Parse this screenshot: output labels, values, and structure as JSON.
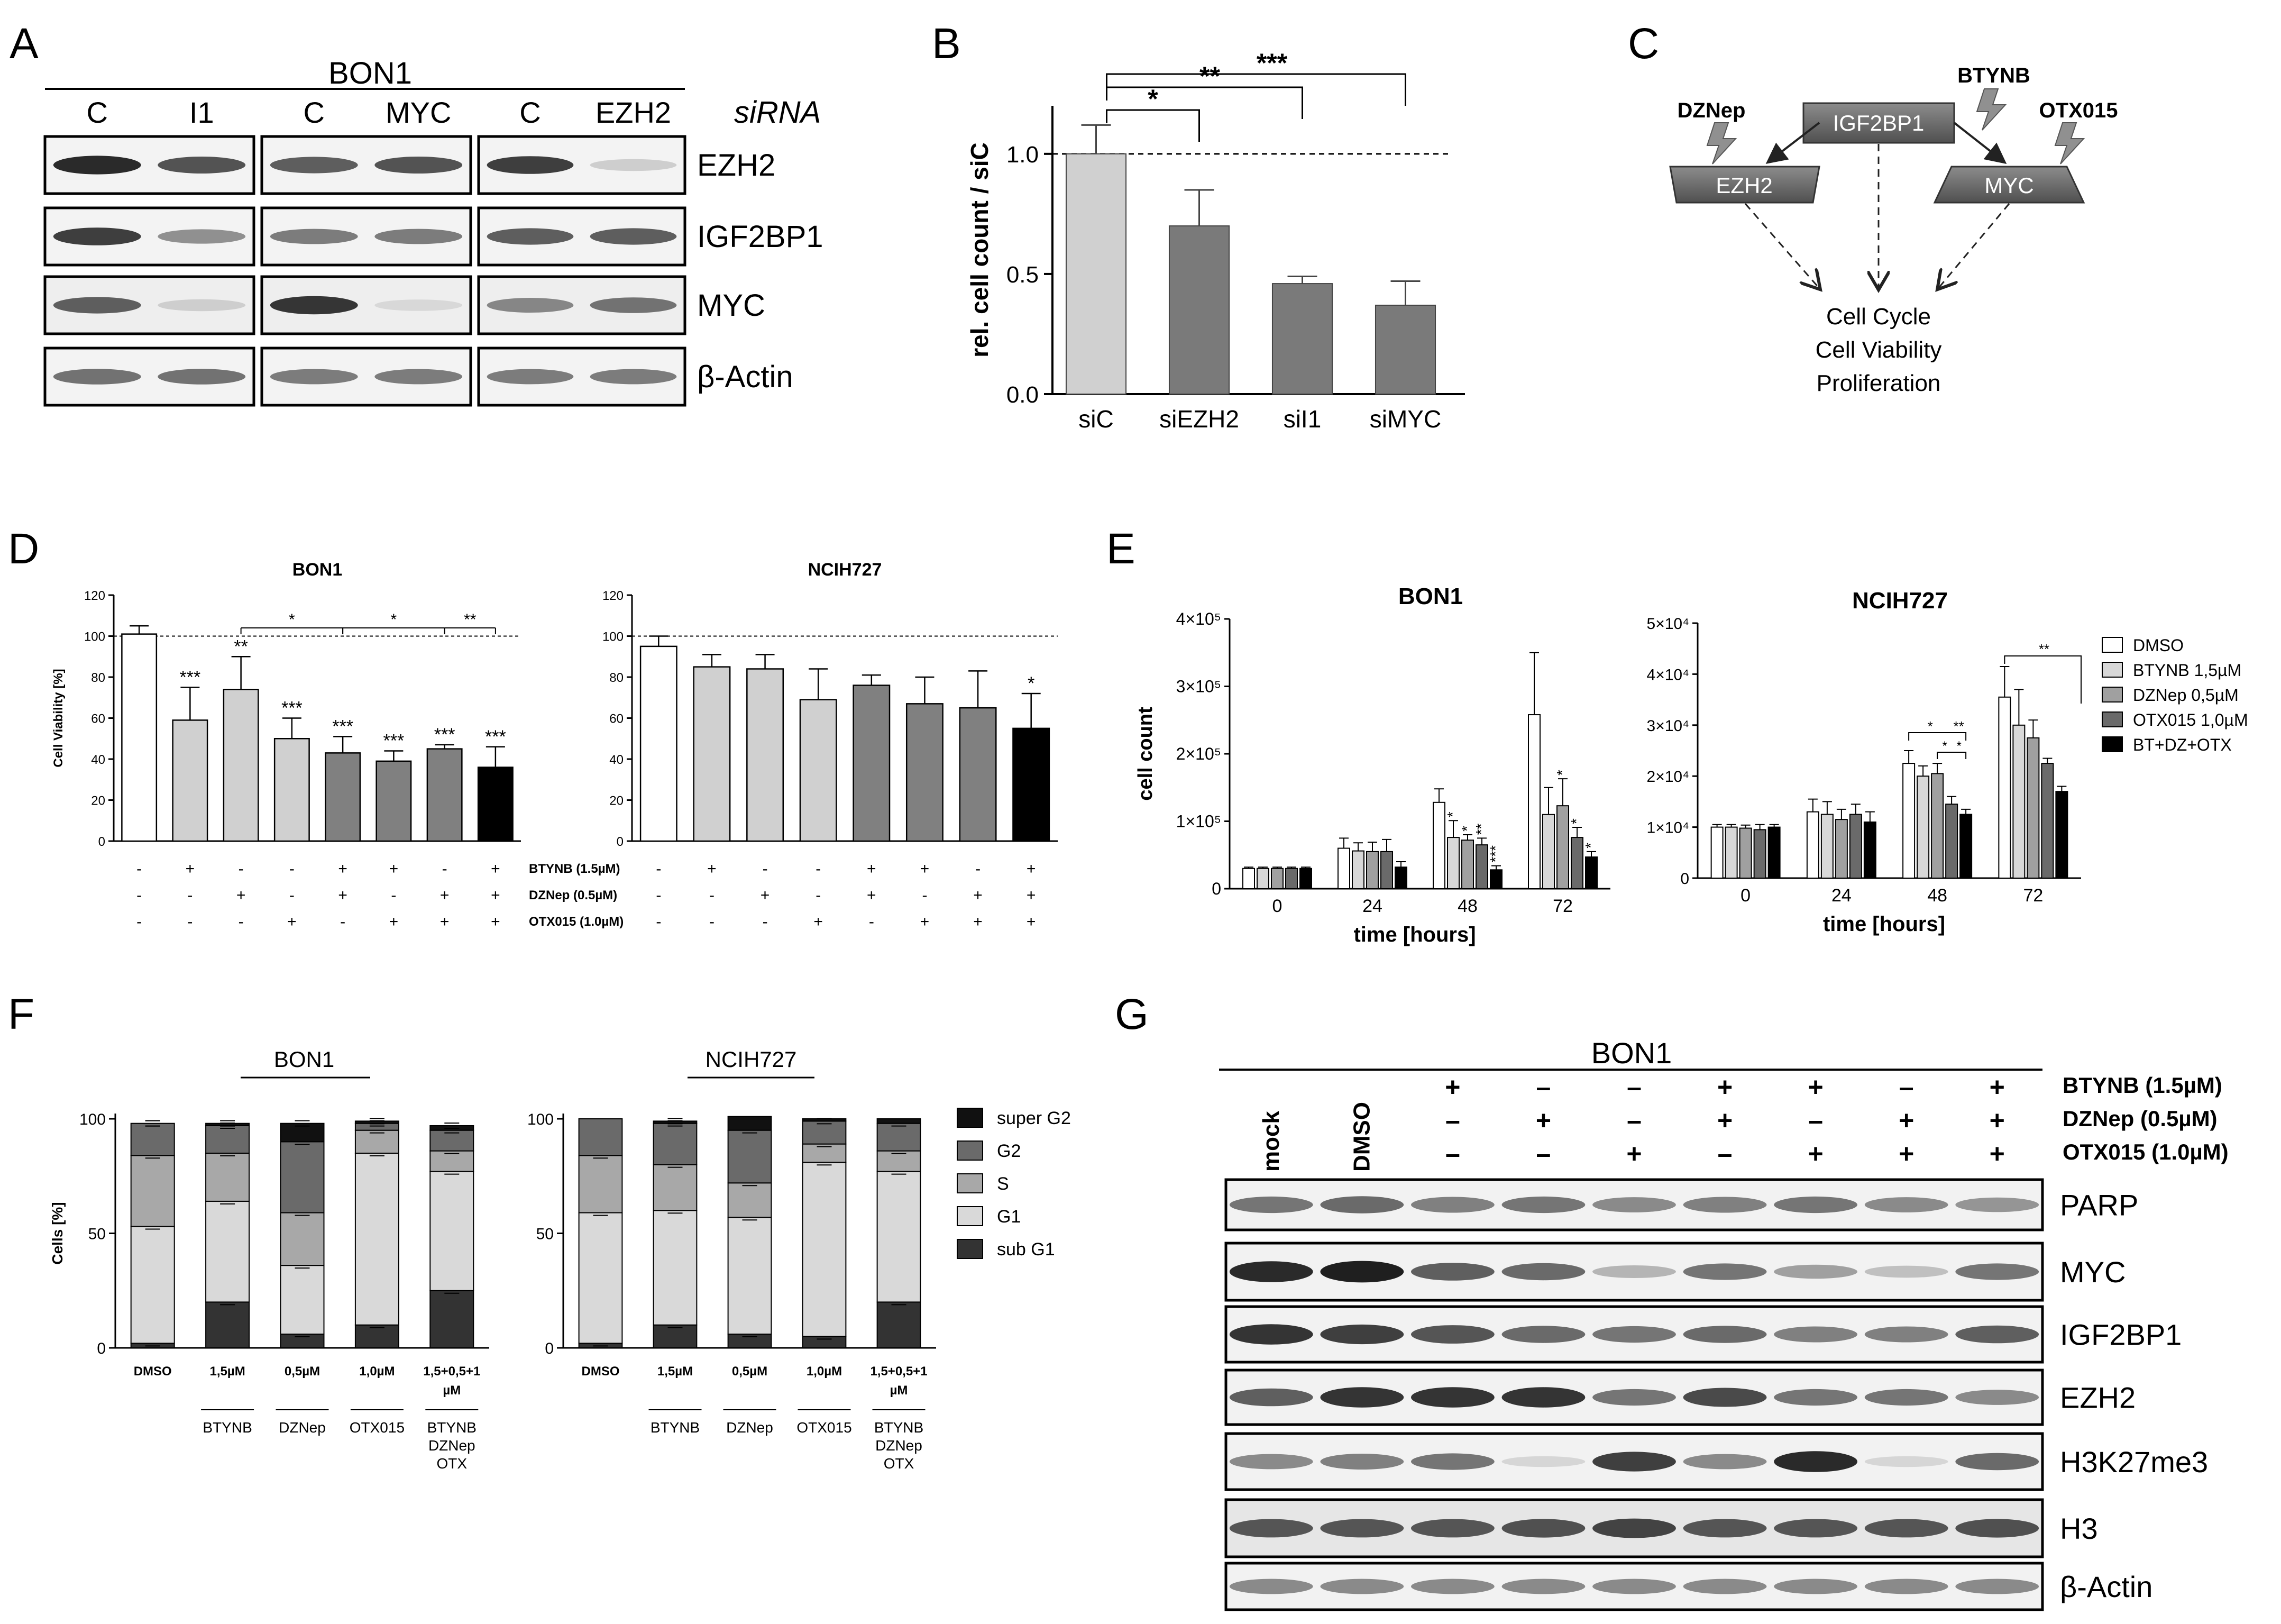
{
  "panels": {
    "A": {
      "letter": "A",
      "cell_line": "BON1",
      "siRNA_label": "siRNA",
      "lanes": [
        "C",
        "I1",
        "C",
        "MYC",
        "C",
        "EZH2"
      ],
      "proteins": [
        "EZH2",
        "IGF2BP1",
        "MYC",
        "β-Actin"
      ]
    },
    "B": {
      "letter": "B",
      "sig": [
        "*",
        "**",
        "***"
      ]
    },
    "C": {
      "letter": "C",
      "hub": "IGF2BP1",
      "targets": [
        "EZH2",
        "MYC"
      ],
      "inhibitors": [
        "DZNep",
        "BTYNB",
        "OTX015"
      ],
      "outcome": [
        "Cell Cycle",
        "Cell Viability",
        "Proliferation"
      ]
    },
    "D": {
      "letter": "D",
      "treatment_labels": [
        "BTYNB (1.5µM)",
        "DZNep (0.5µM)",
        "OTX015 (1.0µM)"
      ],
      "matrix": [
        [
          "-",
          "+",
          "-",
          "-",
          "+",
          "+",
          "-",
          "+"
        ],
        [
          "-",
          "-",
          "+",
          "-",
          "+",
          "-",
          "+",
          "+"
        ],
        [
          "-",
          "-",
          "-",
          "+",
          "-",
          "+",
          "+",
          "+"
        ]
      ],
      "bon1_bracket_stars": [
        "*",
        "*",
        "**"
      ]
    },
    "E": {
      "letter": "E"
    },
    "F": {
      "letter": "F",
      "bon1_title": "BON1",
      "ncih727_title": "NCIH727",
      "group_labels": [
        "BTYNB",
        "DZNep",
        "OTX015"
      ],
      "combo_label_lines": [
        "BTYNB",
        "DZNep",
        "OTX"
      ]
    },
    "G": {
      "letter": "G",
      "cell_line": "BON1",
      "first_lanes": [
        "mock",
        "DMSO"
      ],
      "treatments": [
        "BTYNB (1.5µM)",
        "DZNep (0.5µM)",
        "OTX015 (1.0µM)"
      ],
      "matrix": [
        [
          "+",
          "–",
          "–",
          "+",
          "+",
          "–",
          "+"
        ],
        [
          "–",
          "+",
          "–",
          "+",
          "–",
          "+",
          "+"
        ],
        [
          "–",
          "–",
          "+",
          "–",
          "+",
          "+",
          "+"
        ]
      ],
      "proteins": [
        "PARP",
        "MYC",
        "IGF2BP1",
        "EZH2",
        "H3K27me3",
        "H3",
        "β-Actin"
      ]
    }
  },
  "chart_data": [
    {
      "id": "B",
      "type": "bar",
      "categories": [
        "siC",
        "siEZH2",
        "siI1",
        "siMYC"
      ],
      "values": [
        1.0,
        0.7,
        0.46,
        0.37
      ],
      "errors": [
        0.12,
        0.15,
        0.03,
        0.1
      ],
      "ylabel": "rel. cell count / siC",
      "yticks": [
        "0.0",
        "0.5",
        "1.0"
      ],
      "ylim": [
        0,
        1.2
      ],
      "reference_line": 1.0,
      "colors": [
        "#d0d0d0",
        "#7a7a7a",
        "#7a7a7a",
        "#7a7a7a"
      ]
    },
    {
      "id": "D-BON1",
      "type": "bar",
      "title": "BON1",
      "ylabel": "Cell Viability [%]",
      "yticks": [
        "0",
        "20",
        "40",
        "60",
        "80",
        "100",
        "120"
      ],
      "ylim": [
        0,
        120
      ],
      "reference_line": 100,
      "values": [
        101,
        59,
        74,
        50,
        43,
        39,
        45,
        36
      ],
      "errors": [
        4,
        16,
        16,
        10,
        8,
        5,
        2,
        10
      ],
      "stars": [
        "",
        "***",
        "**",
        "***",
        "***",
        "***",
        "***",
        "***"
      ],
      "colors": [
        "#ffffff",
        "#d0d0d0",
        "#d0d0d0",
        "#d0d0d0",
        "#808080",
        "#808080",
        "#808080",
        "#000000"
      ]
    },
    {
      "id": "D-NCIH727",
      "type": "bar",
      "title": "NCIH727",
      "yticks": [
        "0",
        "20",
        "40",
        "60",
        "80",
        "100",
        "120"
      ],
      "ylim": [
        0,
        120
      ],
      "reference_line": 100,
      "values": [
        95,
        85,
        84,
        69,
        76,
        67,
        65,
        55
      ],
      "errors": [
        5,
        6,
        7,
        15,
        5,
        13,
        18,
        17
      ],
      "stars": [
        "",
        "",
        "",
        "",
        "",
        "",
        "",
        "*"
      ],
      "colors": [
        "#ffffff",
        "#d0d0d0",
        "#d0d0d0",
        "#d0d0d0",
        "#808080",
        "#808080",
        "#808080",
        "#000000"
      ]
    },
    {
      "id": "E-BON1",
      "type": "bar",
      "title": "BON1",
      "xlabel": "time [hours]",
      "ylabel": "cell count",
      "categories": [
        "0",
        "24",
        "48",
        "72"
      ],
      "yticks": [
        "0",
        "1×10⁵",
        "2×10⁵",
        "3×10⁵",
        "4×10⁵"
      ],
      "ylim": [
        0,
        400000
      ],
      "series": [
        {
          "name": "DMSO",
          "values": [
            30000,
            60000,
            128000,
            258000
          ],
          "errors": [
            2000,
            15000,
            20000,
            92000
          ]
        },
        {
          "name": "BTYNB 1,5µM",
          "values": [
            30000,
            56000,
            76000,
            110000
          ],
          "errors": [
            2000,
            12000,
            25000,
            40000
          ]
        },
        {
          "name": "DZNep 0,5µM",
          "values": [
            30000,
            55000,
            72000,
            123000
          ],
          "errors": [
            2000,
            14000,
            8000,
            40000
          ]
        },
        {
          "name": "OTX015 1,0µM",
          "values": [
            30000,
            55000,
            65000,
            76000
          ],
          "errors": [
            2000,
            18000,
            10000,
            15000
          ]
        },
        {
          "name": "BT+DZ+OTX",
          "values": [
            30000,
            32000,
            28000,
            47000
          ],
          "errors": [
            2000,
            8000,
            6000,
            8000
          ]
        }
      ],
      "stars": [
        [
          "",
          "",
          "",
          ""
        ],
        [
          "",
          "",
          "*",
          ""
        ],
        [
          "",
          "",
          "*",
          "*"
        ],
        [
          "",
          "",
          "**",
          "*"
        ],
        [
          "",
          "",
          "***",
          "*"
        ]
      ]
    },
    {
      "id": "E-NCIH727",
      "type": "bar",
      "title": "NCIH727",
      "xlabel": "time [hours]",
      "categories": [
        "0",
        "24",
        "48",
        "72"
      ],
      "yticks": [
        "0",
        "1×10⁴",
        "2×10⁴",
        "3×10⁴",
        "4×10⁴",
        "5×10⁴"
      ],
      "ylim": [
        0,
        50000
      ],
      "series": [
        {
          "name": "DMSO",
          "values": [
            10000,
            13000,
            22500,
            35500
          ],
          "errors": [
            500,
            2500,
            2500,
            6000
          ]
        },
        {
          "name": "BTYNB 1,5µM",
          "values": [
            10000,
            12500,
            20000,
            30000
          ],
          "errors": [
            500,
            2500,
            2000,
            7000
          ]
        },
        {
          "name": "DZNep 0,5µM",
          "values": [
            9800,
            11500,
            20500,
            27500
          ],
          "errors": [
            600,
            2000,
            2000,
            3500
          ]
        },
        {
          "name": "OTX015 1,0µM",
          "values": [
            9500,
            12500,
            14500,
            22500
          ],
          "errors": [
            1000,
            2000,
            1500,
            1000
          ]
        },
        {
          "name": "BT+DZ+OTX",
          "values": [
            10000,
            11000,
            12500,
            17000
          ],
          "errors": [
            500,
            2000,
            1000,
            1000
          ]
        }
      ],
      "brackets_48": [
        "*",
        "**",
        "*",
        "*"
      ],
      "bracket_72": "**"
    },
    {
      "id": "F-BON1",
      "type": "bar",
      "stacked": true,
      "ylabel": "Cells [%]",
      "yticks": [
        "0",
        "50",
        "100"
      ],
      "ylim": [
        0,
        100
      ],
      "categories": [
        "DMSO",
        "1,5µM",
        "0,5µM",
        "1,0µM",
        "1,5+0,5+1 µM"
      ],
      "series": [
        {
          "name": "sub G1",
          "values": [
            2,
            20,
            6,
            10,
            25
          ]
        },
        {
          "name": "G1",
          "values": [
            51,
            44,
            30,
            75,
            52
          ]
        },
        {
          "name": "S",
          "values": [
            31,
            21,
            23,
            10,
            9
          ]
        },
        {
          "name": "G2",
          "values": [
            14,
            12,
            31,
            3,
            9
          ]
        },
        {
          "name": "super G2",
          "values": [
            0,
            1,
            8,
            1,
            2
          ]
        }
      ]
    },
    {
      "id": "F-NCIH727",
      "type": "bar",
      "stacked": true,
      "yticks": [
        "0",
        "50",
        "100"
      ],
      "ylim": [
        0,
        100
      ],
      "categories": [
        "DMSO",
        "1,5µM",
        "0,5µM",
        "1,0µM",
        "1,5+0,5+1 µM"
      ],
      "series": [
        {
          "name": "sub G1",
          "values": [
            2,
            10,
            6,
            5,
            20
          ]
        },
        {
          "name": "G1",
          "values": [
            57,
            50,
            51,
            76,
            57
          ]
        },
        {
          "name": "S",
          "values": [
            25,
            20,
            15,
            8,
            9
          ]
        },
        {
          "name": "G2",
          "values": [
            16,
            18,
            23,
            10,
            12
          ]
        },
        {
          "name": "super G2",
          "values": [
            0,
            1,
            6,
            1,
            2
          ]
        }
      ]
    }
  ],
  "colors": {
    "legend_E": [
      "#ffffff",
      "#d8d8d8",
      "#a0a0a0",
      "#6a6a6a",
      "#000000"
    ],
    "legend_F": {
      "super G2": "#111111",
      "G2": "#6a6a6a",
      "S": "#a8a8a8",
      "G1": "#d9d9d9",
      "sub G1": "#333333"
    }
  }
}
